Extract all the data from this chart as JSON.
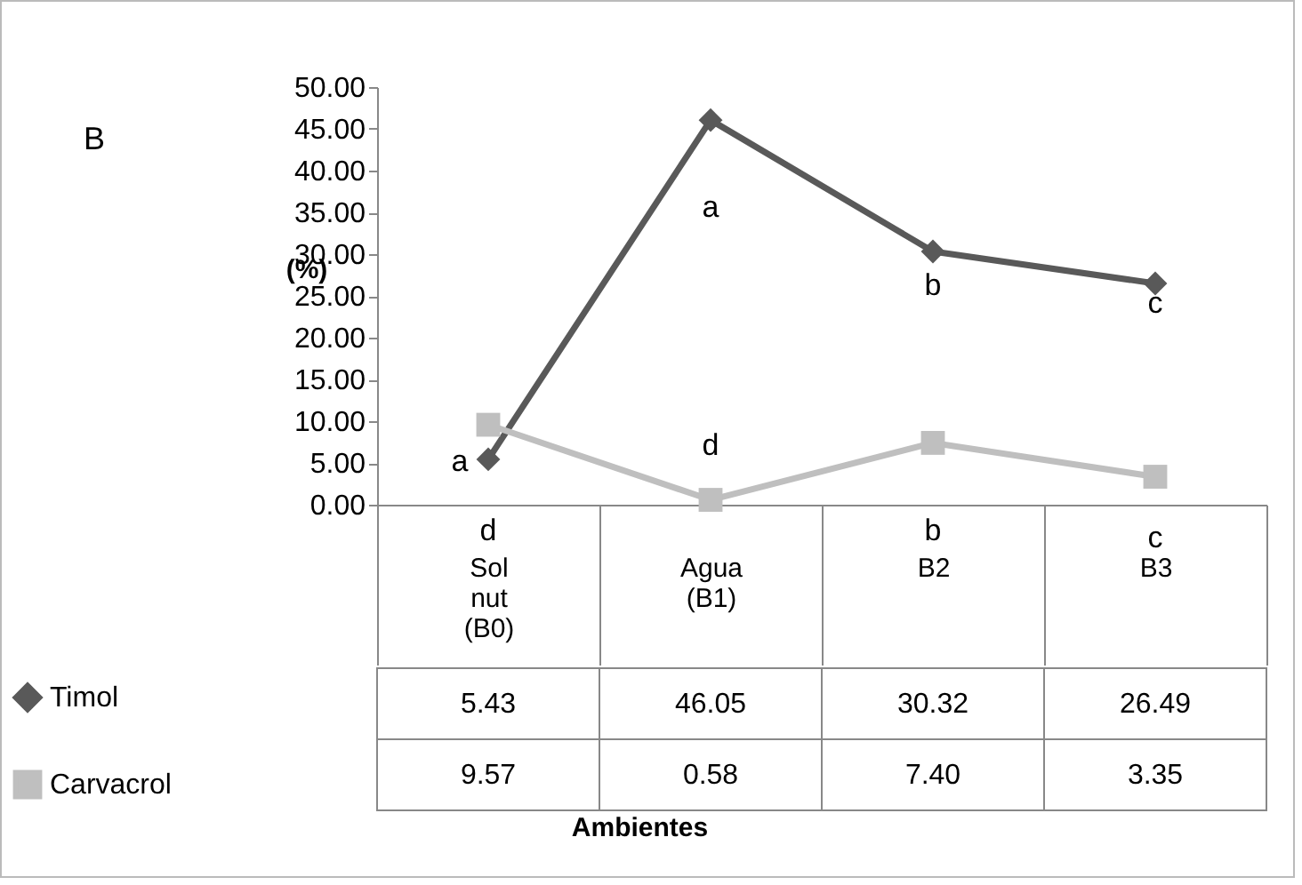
{
  "chart_data": {
    "type": "line",
    "ylabel": "(%)",
    "categories": [
      "Sol nut (B0)",
      "Agua (B1)",
      "B2",
      "B3"
    ],
    "series": [
      {
        "name": "Timol",
        "color": "#595959",
        "marker": "diamond",
        "values": [
          5.43,
          46.05,
          30.32,
          26.49
        ],
        "value_labels": [
          "5.43",
          "46.05",
          "30.32",
          "26.49"
        ]
      },
      {
        "name": "Carvacrol",
        "color": "#bfbfbf",
        "marker": "square",
        "values": [
          9.57,
          0.58,
          7.4,
          3.35
        ],
        "value_labels": [
          "9.57",
          "0.58",
          "7.40",
          "3.35"
        ]
      }
    ],
    "ylim": [
      0,
      50
    ],
    "yticks": [
      {
        "value": 0,
        "label": "0.00"
      },
      {
        "value": 5,
        "label": "5.00"
      },
      {
        "value": 10,
        "label": "10.00"
      },
      {
        "value": 15,
        "label": "15.00"
      },
      {
        "value": 20,
        "label": "20.00"
      },
      {
        "value": 25,
        "label": "25.00"
      },
      {
        "value": 30,
        "label": "30.00"
      },
      {
        "value": 35,
        "label": "35.00"
      },
      {
        "value": 40,
        "label": "40.00"
      },
      {
        "value": 45,
        "label": "45.00"
      },
      {
        "value": 50,
        "label": "50.00"
      }
    ],
    "legend": "bottom left",
    "line_style": "solid",
    "annotations": [
      "B",
      "a",
      "a",
      "b",
      "c",
      "d",
      "d",
      "b",
      "c",
      "Ambientes"
    ]
  }
}
